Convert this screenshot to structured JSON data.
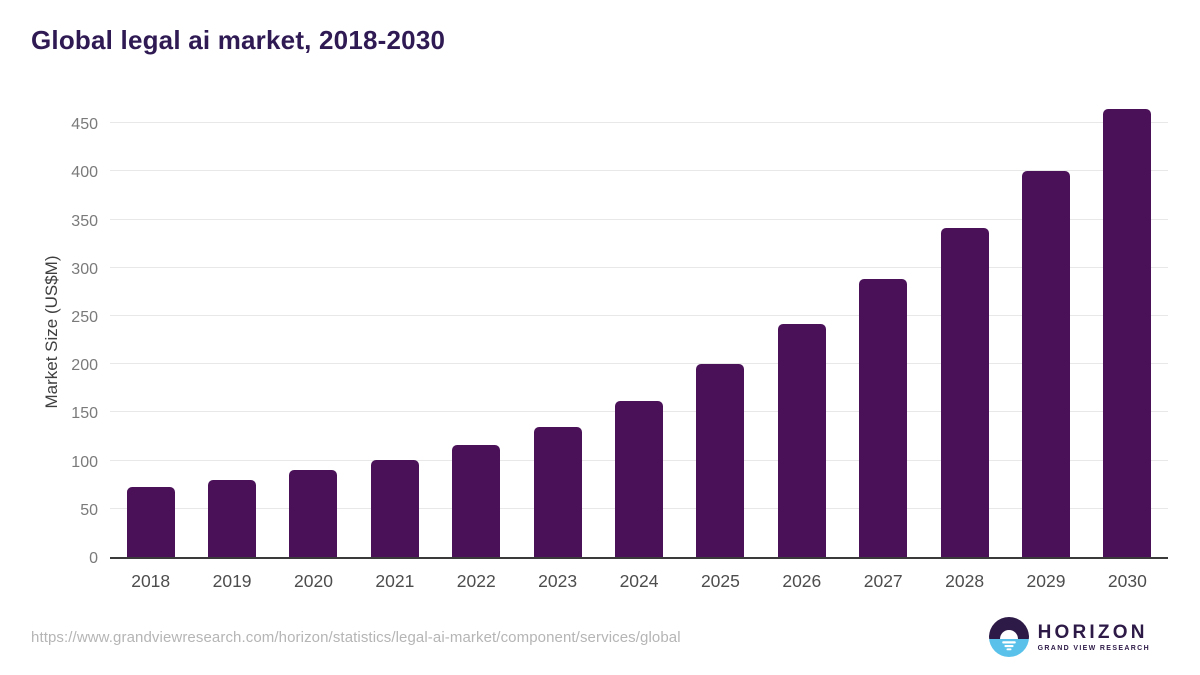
{
  "page": {
    "title": "Global legal ai market, 2018-2030",
    "source_url": "https://www.grandviewresearch.com/horizon/statistics/legal-ai-market/component/services/global",
    "logo": {
      "brand": "HORIZON",
      "sub_brand": "GRAND VIEW RESEARCH",
      "icon": "horizon-sunrise-icon"
    },
    "colors": {
      "title": "#2f1a54",
      "bar": "#4a1158",
      "gridline": "#e8e8e8",
      "axis_line": "#3a3a3a",
      "y_tick_label": "#7a7a7a",
      "x_tick_label": "#4d4d4d",
      "source_url": "#b5b5b5",
      "logo_purple": "#2d1a47",
      "logo_blue": "#5ac2ea"
    }
  },
  "chart_data": {
    "type": "bar",
    "title": "Global legal ai market, 2018-2030",
    "categories": [
      "2018",
      "2019",
      "2020",
      "2021",
      "2022",
      "2023",
      "2024",
      "2025",
      "2026",
      "2027",
      "2028",
      "2029",
      "2030"
    ],
    "values": [
      73,
      80,
      90,
      101,
      116,
      135,
      162,
      200,
      242,
      288,
      341,
      400,
      465
    ],
    "xlabel": "",
    "ylabel": "Market Size (US$M)",
    "ylim": [
      0,
      471
    ],
    "yticks": [
      0,
      50,
      100,
      150,
      200,
      250,
      300,
      350,
      400,
      450
    ],
    "grid": true,
    "legend": false,
    "bar_color": "#4a1158"
  }
}
